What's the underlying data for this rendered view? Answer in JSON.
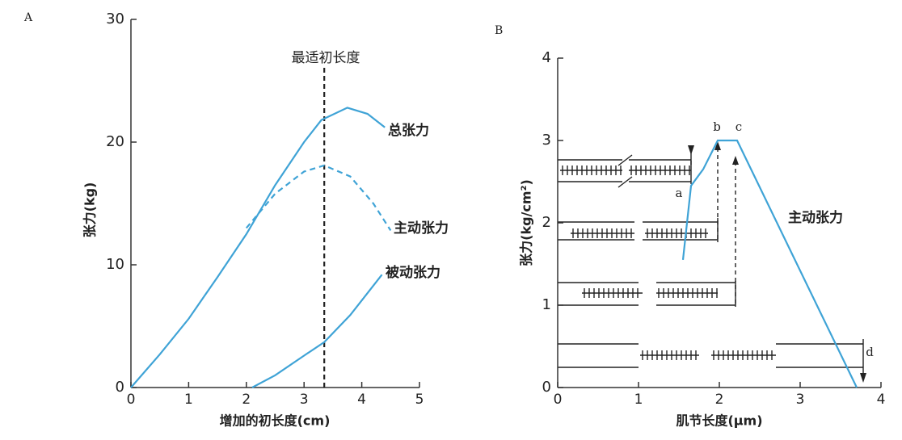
{
  "chart_data": [
    {
      "type": "line",
      "title": "A",
      "ylabel": "张力(kg)",
      "xlabel": "增加的初长度(cm)",
      "xlim": [
        0,
        5
      ],
      "xticks": [
        0,
        1,
        2,
        3,
        4,
        5
      ],
      "ylim": [
        0,
        30
      ],
      "yticks": [
        0,
        10,
        20,
        30
      ],
      "annotation": "最适初长度",
      "vline": 3.35,
      "series": [
        {
          "name": "总张力",
          "color": "#3fa3d6",
          "dashed": false,
          "x": [
            0,
            0.5,
            1,
            1.5,
            2,
            2.5,
            3,
            3.3,
            3.75,
            4.1,
            4.4
          ],
          "values": [
            0,
            2.7,
            5.6,
            9,
            12.5,
            16.5,
            20,
            21.8,
            22.8,
            22.3,
            21.2
          ]
        },
        {
          "name": "主动张力",
          "color": "#3fa3d6",
          "dashed": true,
          "x": [
            2,
            2.5,
            3,
            3.35,
            3.8,
            4.2,
            4.5
          ],
          "values": [
            13,
            15.8,
            17.6,
            18.1,
            17.2,
            15,
            12.8
          ]
        },
        {
          "name": "被动张力",
          "color": "#3fa3d6",
          "dashed": false,
          "x": [
            2.1,
            2.5,
            3,
            3.35,
            3.8,
            4.35
          ],
          "values": [
            0,
            1,
            2.6,
            3.7,
            5.9,
            9.2
          ]
        }
      ]
    },
    {
      "type": "line",
      "title": "B",
      "ylabel": "张力(kg/cm²)",
      "xlabel": "肌节长度(μm)",
      "xlim": [
        0,
        4
      ],
      "xticks": [
        0,
        1,
        2,
        3,
        4
      ],
      "ylim": [
        0,
        4
      ],
      "yticks": [
        0,
        1,
        2,
        3,
        4
      ],
      "point_labels": [
        "a",
        "b",
        "c",
        "d"
      ],
      "series": [
        {
          "name": "主动张力",
          "color": "#3fa3d6",
          "dashed": false,
          "x": [
            1.55,
            1.65,
            1.8,
            1.98,
            2.22,
            3.7
          ],
          "values": [
            1.55,
            2.45,
            2.65,
            3.0,
            3.0,
            0
          ]
        }
      ]
    }
  ]
}
